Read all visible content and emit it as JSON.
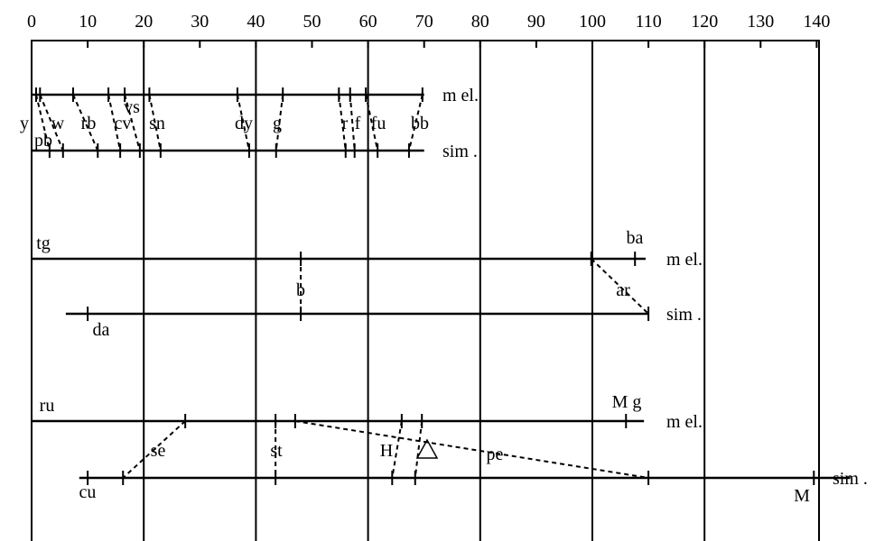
{
  "axis": {
    "ticks": [
      0,
      10,
      20,
      30,
      40,
      50,
      60,
      70,
      80,
      90,
      100,
      110,
      120,
      130,
      140
    ],
    "gridlines": [
      20,
      40,
      60,
      80,
      100,
      120
    ],
    "range": [
      0,
      140
    ]
  },
  "species_labels": {
    "mel": "m el.",
    "sim": "sim ."
  },
  "chromosomes": [
    {
      "mel_extent": [
        0,
        70
      ],
      "sim_extent": [
        0,
        70
      ],
      "loci": [
        {
          "name": "y",
          "mel": 0.8,
          "sim": 3.2
        },
        {
          "name": "w",
          "mel": 1.5,
          "sim": 5.6
        },
        {
          "name": "rb",
          "mel": 7.4,
          "sim": 11.8
        },
        {
          "name": "cv",
          "mel": 13.7,
          "sim": 15.8
        },
        {
          "name": "vs",
          "mel": 16.6,
          "sim": 19.3
        },
        {
          "name": "sn",
          "mel": 21.0,
          "sim": 23.0
        },
        {
          "name": "dy",
          "mel": 36.7,
          "sim": 38.8
        },
        {
          "name": "g",
          "mel": 44.8,
          "sim": 43.6
        },
        {
          "name": "r",
          "mel": 54.8,
          "sim": 56.0
        },
        {
          "name": "f",
          "mel": 56.8,
          "sim": 57.6
        },
        {
          "name": "fu",
          "mel": 59.6,
          "sim": 61.7
        },
        {
          "name": "bb",
          "mel": 69.7,
          "sim": 67.3
        }
      ],
      "extra_labels": [
        "pb"
      ]
    },
    {
      "mel_extent": [
        0,
        109.5
      ],
      "sim_extent": [
        6.1,
        110
      ],
      "loci": [
        {
          "name": "tg",
          "mel": 0,
          "sim": null
        },
        {
          "name": "da",
          "mel": null,
          "sim": 10
        },
        {
          "name": "b",
          "mel": 48,
          "sim": 48
        },
        {
          "name": "ar",
          "mel": 99.8,
          "sim": 110
        },
        {
          "name": "ba",
          "mel": 107.6,
          "sim": null
        }
      ]
    },
    {
      "mel_extent": [
        0,
        109.2
      ],
      "sim_extent": [
        8.5,
        146
      ],
      "loci": [
        {
          "name": "ru",
          "mel": 0,
          "sim": null
        },
        {
          "name": "cu",
          "mel": null,
          "sim": 10
        },
        {
          "name": "se",
          "mel": 27.4,
          "sim": 16.3
        },
        {
          "name": "st",
          "mel": 43.5,
          "sim": 43.5
        },
        {
          "name": "pe",
          "mel": 47,
          "sim": 110
        },
        {
          "name": "H",
          "mel": 66,
          "sim": 64.3
        },
        {
          "name": "△",
          "mel": 69.6,
          "sim": 68.4
        },
        {
          "name": "M g",
          "mel": 106,
          "sim": null
        },
        {
          "name": "M",
          "mel": null,
          "sim": 139.5
        }
      ]
    }
  ]
}
